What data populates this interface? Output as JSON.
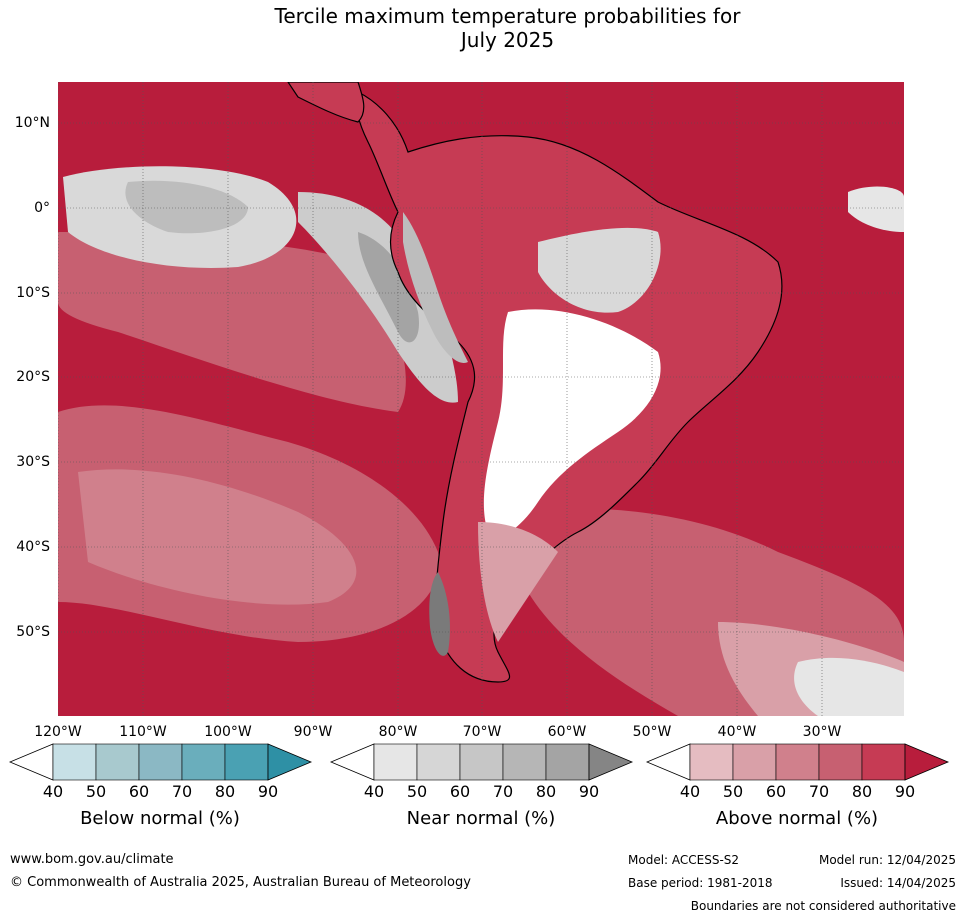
{
  "title": {
    "line1": "Tercile maximum temperature probabilities for",
    "line2": "July 2025"
  },
  "map": {
    "lat_labels": [
      "10°N",
      "0°",
      "10°S",
      "20°S",
      "30°S",
      "40°S",
      "50°S"
    ],
    "lon_labels": [
      "120°W",
      "110°W",
      "100°W",
      "90°W",
      "80°W",
      "70°W",
      "60°W",
      "50°W",
      "40°W",
      "30°W"
    ],
    "colors": {
      "above_90": "#b81d3c",
      "above_80": "#c63b54",
      "above_70": "#c76071",
      "above_60": "#d0808c",
      "above_50": "#d9a0a8",
      "above_40": "#e5bcc1",
      "near_90": "#7a7a7a",
      "near_80": "#a4a4a4",
      "near_70": "#bdbdbd",
      "near_60": "#cccccc",
      "near_50": "#d9d9d9",
      "near_40": "#e6e6e6",
      "below_40": "#c7e0e6"
    }
  },
  "legends": [
    {
      "name": "Below normal (%)",
      "ticks": [
        "40",
        "50",
        "60",
        "70",
        "80",
        "90"
      ],
      "colors": [
        "#c7e0e6",
        "#a8c9ce",
        "#8bb8c4",
        "#6aaebc",
        "#4aa1b3",
        "#2e90a5"
      ]
    },
    {
      "name": "Near normal (%)",
      "ticks": [
        "40",
        "50",
        "60",
        "70",
        "80",
        "90"
      ],
      "colors": [
        "#e6e6e6",
        "#d6d6d6",
        "#c6c6c6",
        "#b6b6b6",
        "#a4a4a4",
        "#858585"
      ]
    },
    {
      "name": "Above normal (%)",
      "ticks": [
        "40",
        "50",
        "60",
        "70",
        "80",
        "90"
      ],
      "colors": [
        "#e5bcc1",
        "#d9a0a8",
        "#d0808c",
        "#c76071",
        "#c63b54",
        "#b81d3c"
      ]
    }
  ],
  "footer": {
    "website": "www.bom.gov.au/climate",
    "copyright": "© Commonwealth of Australia 2025, Australian Bureau of Meteorology",
    "model": "Model: ACCESS-S2",
    "base_period": "Base period: 1981-2018",
    "model_run": "Model run: 12/04/2025",
    "issued": "Issued: 14/04/2025",
    "disclaimer": "Boundaries are not considered authoritative"
  }
}
